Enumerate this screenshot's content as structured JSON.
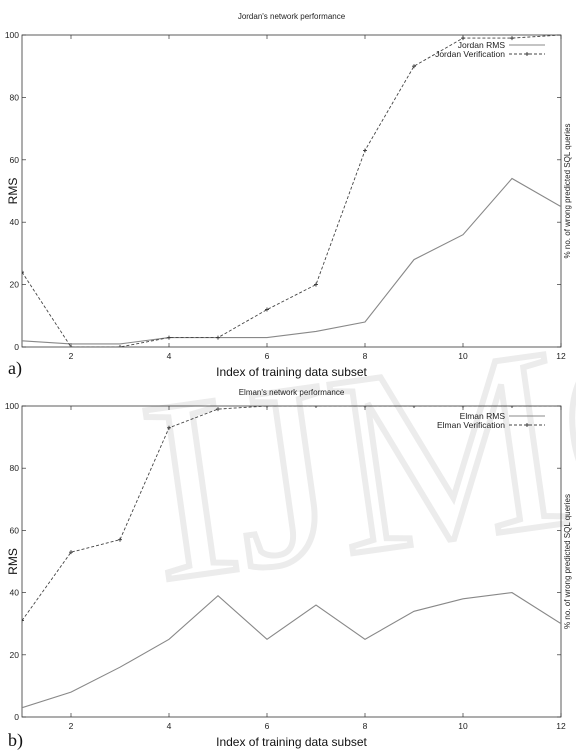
{
  "watermark": "IJMCS",
  "chart_data": [
    {
      "type": "line",
      "panel_label": "a)",
      "title": "Jordan's network performance",
      "xlabel": "Index of training data subset",
      "ylabel": "RMS",
      "y2label": "% no. of wrong predicted SQL queries",
      "xlim": [
        1,
        12
      ],
      "ylim": [
        0,
        100
      ],
      "xticks": [
        2,
        4,
        6,
        8,
        10,
        12
      ],
      "yticks": [
        0,
        20,
        40,
        60,
        80,
        100
      ],
      "legend_position": "top-right",
      "grid": false,
      "series": [
        {
          "name": "Jordan RMS",
          "style": "solid",
          "x": [
            1,
            2,
            3,
            4,
            5,
            6,
            7,
            8,
            9,
            10,
            11,
            12
          ],
          "y": [
            2,
            1,
            1,
            3,
            3,
            3,
            5,
            8,
            28,
            36,
            54,
            45
          ]
        },
        {
          "name": "Jordan Verification",
          "style": "dashed-points",
          "x": [
            1,
            2,
            3,
            4,
            5,
            6,
            7,
            8,
            9,
            10,
            11,
            12
          ],
          "y": [
            24,
            0,
            0,
            3,
            3,
            12,
            20,
            63,
            90,
            99,
            99,
            100
          ]
        }
      ]
    },
    {
      "type": "line",
      "panel_label": "b)",
      "title": "Elman's network performance",
      "xlabel": "Index of training data subset",
      "ylabel": "RMS",
      "y2label": "% no. of wrong predicted SQL queries",
      "xlim": [
        1,
        12
      ],
      "ylim": [
        0,
        100
      ],
      "xticks": [
        2,
        4,
        6,
        8,
        10,
        12
      ],
      "yticks": [
        0,
        20,
        40,
        60,
        80,
        100
      ],
      "legend_position": "top-right",
      "grid": false,
      "series": [
        {
          "name": "Elman RMS",
          "style": "solid",
          "x": [
            1,
            2,
            3,
            4,
            5,
            6,
            7,
            8,
            9,
            10,
            11,
            12
          ],
          "y": [
            3,
            8,
            16,
            25,
            39,
            25,
            36,
            25,
            34,
            38,
            40,
            30
          ]
        },
        {
          "name": "Elman Verification",
          "style": "dashed-points",
          "x": [
            1,
            2,
            3,
            4,
            5,
            6,
            7,
            8,
            9,
            10,
            11,
            12
          ],
          "y": [
            31,
            53,
            57,
            93,
            99,
            100,
            100,
            100,
            100,
            100,
            100,
            100
          ]
        }
      ]
    }
  ]
}
